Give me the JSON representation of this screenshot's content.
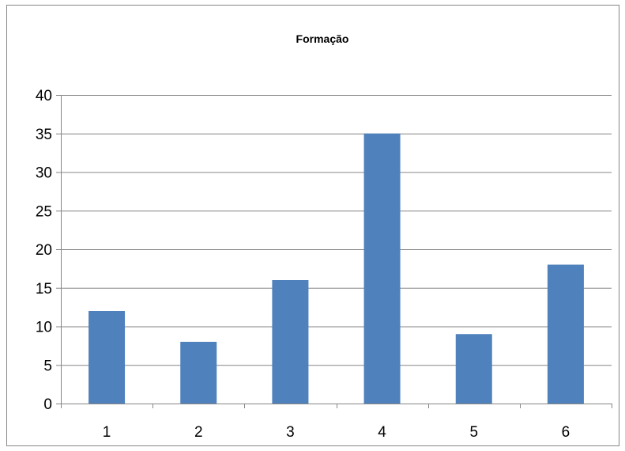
{
  "chart_data": {
    "type": "bar",
    "title": "Formação",
    "categories": [
      "1",
      "2",
      "3",
      "4",
      "5",
      "6"
    ],
    "values": [
      12,
      8,
      16,
      35,
      9,
      18
    ],
    "ylim": [
      0,
      40
    ],
    "yticks": [
      0,
      5,
      10,
      15,
      20,
      25,
      30,
      35,
      40
    ],
    "grid": true,
    "legend": "none",
    "colors": {
      "bar": "#4F81BD",
      "grid": "#868686",
      "axis": "#868686"
    }
  }
}
